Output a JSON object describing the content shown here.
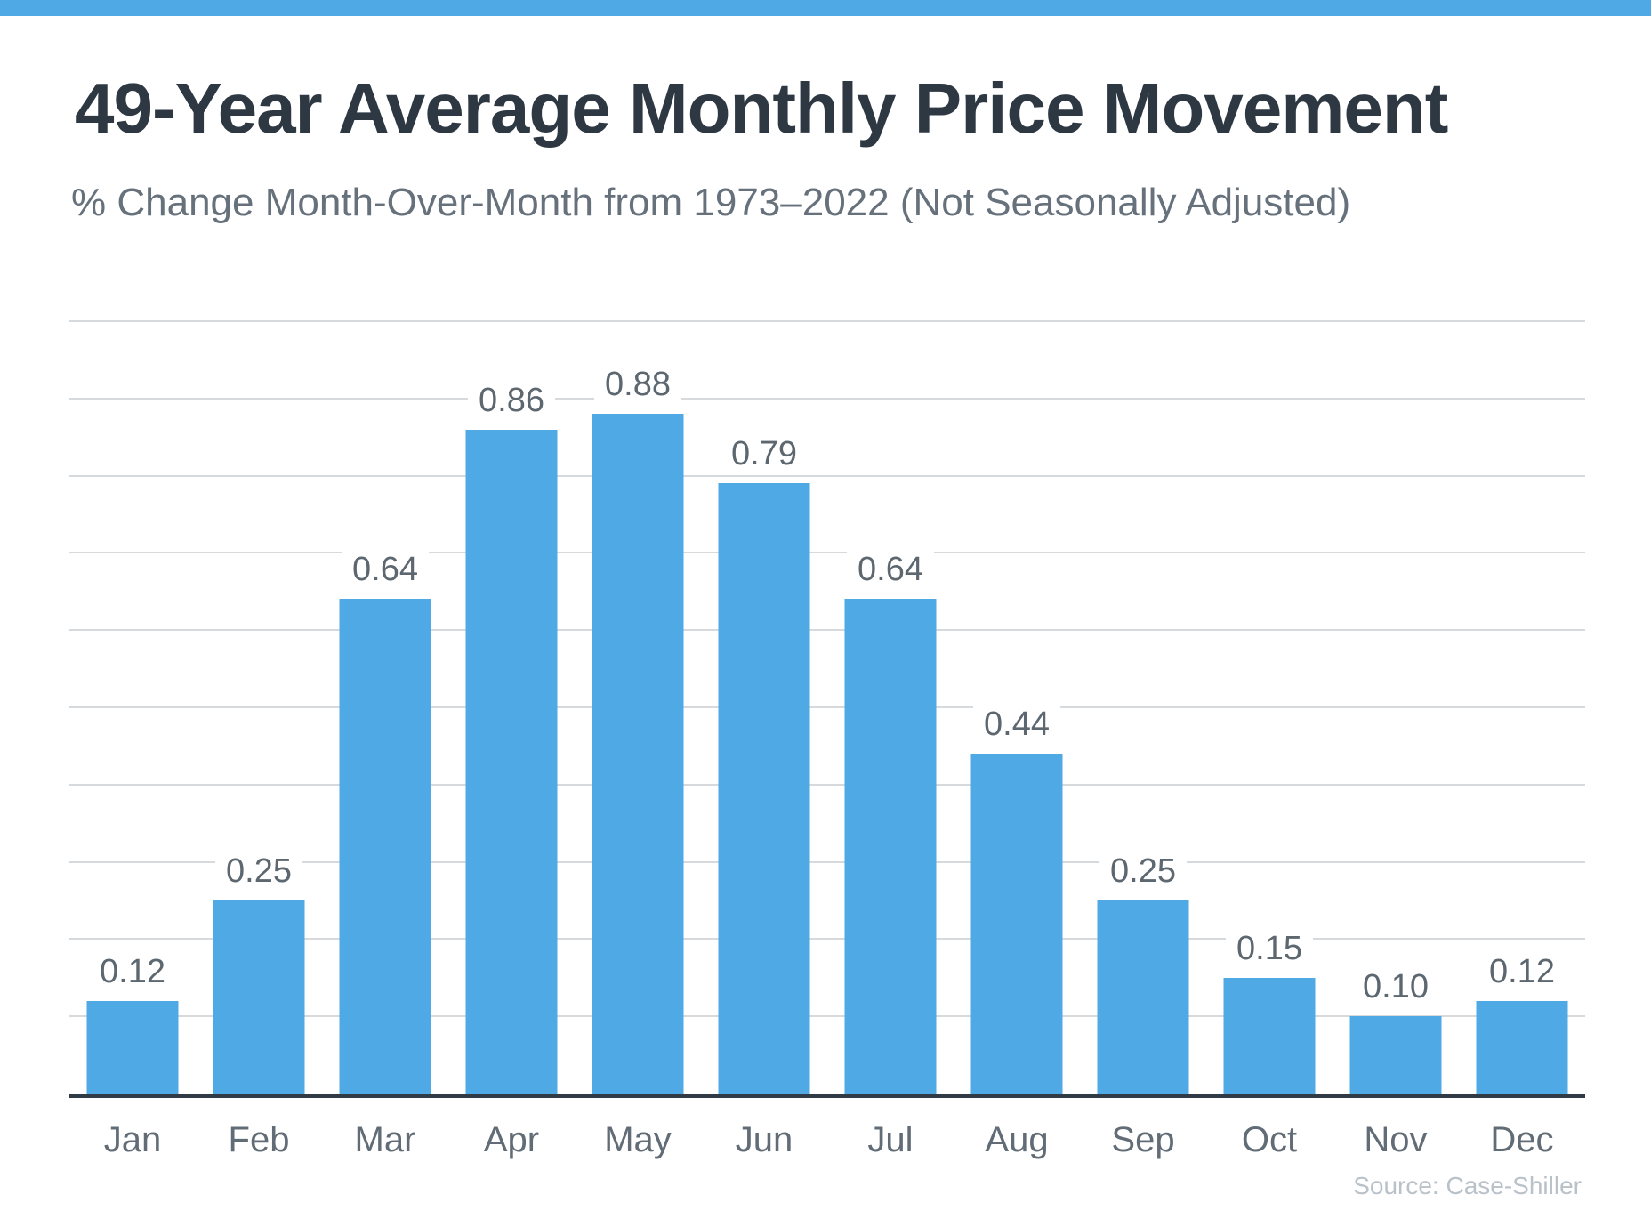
{
  "chart_data": {
    "type": "bar",
    "title": "49-Year Average Monthly Price Movement",
    "subtitle": "% Change Month-Over-Month from 1973–2022 (Not Seasonally Adjusted)",
    "source": "Source: Case-Shiller",
    "categories": [
      "Jan",
      "Feb",
      "Mar",
      "Apr",
      "May",
      "Jun",
      "Jul",
      "Aug",
      "Sep",
      "Oct",
      "Nov",
      "Dec"
    ],
    "values": [
      0.12,
      0.25,
      0.64,
      0.86,
      0.88,
      0.79,
      0.64,
      0.44,
      0.25,
      0.15,
      0.1,
      0.12
    ],
    "value_labels": [
      "0.12",
      "0.25",
      "0.64",
      "0.86",
      "0.88",
      "0.79",
      "0.64",
      "0.44",
      "0.25",
      "0.15",
      "0.10",
      "0.12"
    ],
    "ylim": [
      0,
      1.0
    ],
    "gridline_step": 0.1,
    "grid": "horizontal-only",
    "y_axis_tick_labels": "none",
    "legend": "none",
    "colors": {
      "bar": "#4FA9E4",
      "banner": "#4FA9E4",
      "axis_line": "#313B45",
      "gridline": "#D7DADD",
      "title": "#2E3843",
      "subtitle": "#66717C",
      "value_label": "#5D6770",
      "month_label": "#616C76",
      "source": "#B9C1C9"
    }
  }
}
